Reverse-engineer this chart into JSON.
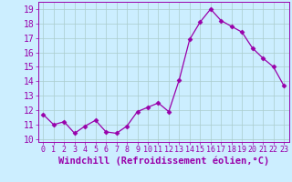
{
  "x": [
    0,
    1,
    2,
    3,
    4,
    5,
    6,
    7,
    8,
    9,
    10,
    11,
    12,
    13,
    14,
    15,
    16,
    17,
    18,
    19,
    20,
    21,
    22,
    23
  ],
  "y": [
    11.7,
    11.0,
    11.2,
    10.4,
    10.9,
    11.3,
    10.5,
    10.4,
    10.9,
    11.9,
    12.2,
    12.5,
    11.9,
    14.1,
    16.9,
    18.1,
    19.0,
    18.2,
    17.8,
    17.4,
    16.3,
    15.6,
    15.0,
    13.7
  ],
  "xlabel": "Windchill (Refroidissement éolien,°C)",
  "line_color": "#9900aa",
  "marker": "D",
  "marker_size": 2.5,
  "bg_color": "#cceeff",
  "grid_color": "#aacccc",
  "ylim": [
    9.8,
    19.5
  ],
  "xlim": [
    -0.5,
    23.5
  ],
  "yticks": [
    10,
    11,
    12,
    13,
    14,
    15,
    16,
    17,
    18,
    19
  ],
  "xticks": [
    0,
    1,
    2,
    3,
    4,
    5,
    6,
    7,
    8,
    9,
    10,
    11,
    12,
    13,
    14,
    15,
    16,
    17,
    18,
    19,
    20,
    21,
    22,
    23
  ],
  "ytick_fontsize": 7,
  "xtick_fontsize": 6,
  "xlabel_fontsize": 7.5
}
